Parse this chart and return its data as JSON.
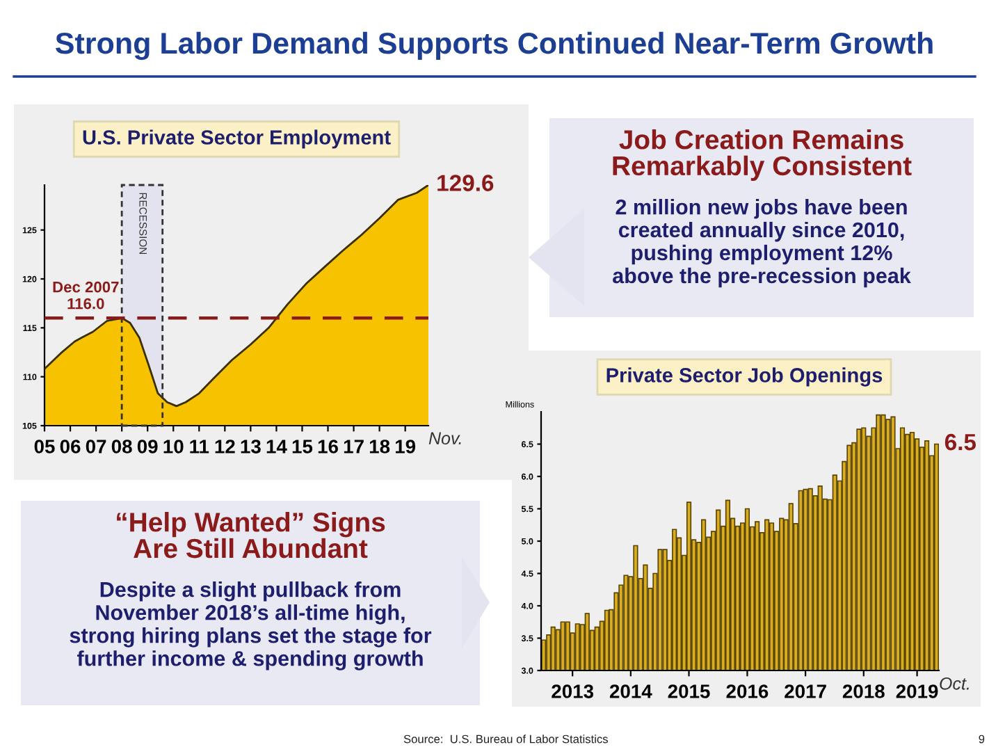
{
  "chart_data": [
    {
      "type": "other",
      "title": "Strong Labor Demand Supports Continued Near-Term Growth",
      "annotations": [
        "Source:  U.S. Bureau of Labor Statistics",
        "9"
      ]
    },
    {
      "type": "area",
      "title": "U.S. Private Sector Employment",
      "xlabel": "Nov.",
      "x": [
        2005.0,
        2005.63,
        2006.17,
        2006.44,
        2006.88,
        2007.42,
        2008.0,
        2008.32,
        2008.68,
        2009.04,
        2009.4,
        2009.76,
        2010.12,
        2010.48,
        2011.0,
        2011.55,
        2012.27,
        2013.0,
        2013.7,
        2014.43,
        2015.15,
        2015.86,
        2016.58,
        2017.3,
        2018.0,
        2018.73,
        2019.45,
        2019.9
      ],
      "series": [
        {
          "color": "#f7c200",
          "values": [
            110.8,
            112.4,
            113.6,
            114.0,
            114.6,
            115.7,
            116.0,
            115.5,
            114.0,
            111.2,
            108.3,
            107.4,
            107.0,
            107.4,
            108.3,
            109.8,
            111.7,
            113.3,
            115.0,
            117.4,
            119.5,
            121.2,
            122.9,
            124.5,
            126.2,
            128.1,
            128.8,
            129.6
          ]
        }
      ],
      "xlim": [
        2005.0,
        2019.9
      ],
      "ylim": [
        105,
        129.6
      ],
      "xticks": [
        {
          "value": 2005,
          "label": "05"
        },
        {
          "value": 2006,
          "label": "06"
        },
        {
          "value": 2007,
          "label": "07"
        },
        {
          "value": 2008,
          "label": "08"
        },
        {
          "value": 2009,
          "label": "09"
        },
        {
          "value": 2010,
          "label": "10"
        },
        {
          "value": 2011,
          "label": "11"
        },
        {
          "value": 2012,
          "label": "12"
        },
        {
          "value": 2013,
          "label": "13"
        },
        {
          "value": 2014,
          "label": "14"
        },
        {
          "value": 2015,
          "label": "15"
        },
        {
          "value": 2016,
          "label": "16"
        },
        {
          "value": 2017,
          "label": "17"
        },
        {
          "value": 2018,
          "label": "18"
        },
        {
          "value": 2019,
          "label": "19"
        }
      ],
      "yticks": [
        105,
        110,
        115,
        120,
        125
      ],
      "ref_lines": [
        {
          "axis": "y",
          "value": 116.0,
          "label": "Dec 2007\n116.0",
          "color": "#8b1a1a",
          "line_style": "dashed"
        }
      ],
      "bands": [
        {
          "axis": "x",
          "from": 2008.0,
          "to": 2009.58,
          "label": "RECESSION",
          "color": "#e3e3f0"
        }
      ],
      "annotations": [
        {
          "text": "129.6",
          "x": 2019.9,
          "y": 129.6
        }
      ],
      "grid": false,
      "legend": false
    },
    {
      "type": "other",
      "title": "Job Creation Remains\nRemarkably Consistent",
      "annotations": [
        "2 million new jobs have been\ncreated annually since 2010,\npushing employment 12%\nabove the pre-recession peak"
      ]
    },
    {
      "type": "other",
      "title": "“Help Wanted” Signs\nAre Still Abundant",
      "annotations": [
        "Despite a slight pullback from\nNovember 2018’s all-time high,\nstrong hiring plans set the stage for\nfurther income & spending growth"
      ]
    },
    {
      "type": "bar",
      "title": "Private Sector Job Openings",
      "ylabel": "Millions",
      "xlabel": "Oct.",
      "x": [
        "2013-01",
        "2013-02",
        "2013-03",
        "2013-04",
        "2013-05",
        "2013-06",
        "2013-07",
        "2013-08",
        "2013-09",
        "2013-10",
        "2013-11",
        "2013-12",
        "2014-01",
        "2014-02",
        "2014-03",
        "2014-04",
        "2014-05",
        "2014-06",
        "2014-07",
        "2014-08",
        "2014-09",
        "2014-10",
        "2014-11",
        "2014-12",
        "2015-01",
        "2015-02",
        "2015-03",
        "2015-04",
        "2015-05",
        "2015-06",
        "2015-07",
        "2015-08",
        "2015-09",
        "2015-10",
        "2015-11",
        "2015-12",
        "2016-01",
        "2016-02",
        "2016-03",
        "2016-04",
        "2016-05",
        "2016-06",
        "2016-07",
        "2016-08",
        "2016-09",
        "2016-10",
        "2016-11",
        "2016-12",
        "2017-01",
        "2017-02",
        "2017-03",
        "2017-04",
        "2017-05",
        "2017-06",
        "2017-07",
        "2017-08",
        "2017-09",
        "2017-10",
        "2017-11",
        "2017-12",
        "2018-01",
        "2018-02",
        "2018-03",
        "2018-04",
        "2018-05",
        "2018-06",
        "2018-07",
        "2018-08",
        "2018-09",
        "2018-10",
        "2018-11",
        "2018-12",
        "2019-01",
        "2019-02",
        "2019-03",
        "2019-04",
        "2019-05",
        "2019-06",
        "2019-07",
        "2019-08",
        "2019-09",
        "2019-10"
      ],
      "series": [
        {
          "color": "#d9ad22",
          "values": [
            3.47,
            3.55,
            3.67,
            3.63,
            3.75,
            3.75,
            3.58,
            3.72,
            3.71,
            3.88,
            3.62,
            3.67,
            3.76,
            3.93,
            3.94,
            4.2,
            4.32,
            4.47,
            4.45,
            4.93,
            4.42,
            4.63,
            4.27,
            4.5,
            4.87,
            4.87,
            4.7,
            5.18,
            5.05,
            4.78,
            5.6,
            5.02,
            4.98,
            5.33,
            5.06,
            5.15,
            5.48,
            5.23,
            5.63,
            5.35,
            5.23,
            5.28,
            5.5,
            5.22,
            5.3,
            5.13,
            5.33,
            5.28,
            5.15,
            5.35,
            5.33,
            5.58,
            5.27,
            5.78,
            5.8,
            5.81,
            5.7,
            5.85,
            5.65,
            5.64,
            6.02,
            5.93,
            6.23,
            6.48,
            6.52,
            6.73,
            6.75,
            6.62,
            6.75,
            6.95,
            6.95,
            6.88,
            6.92,
            6.43,
            6.75,
            6.65,
            6.68,
            6.58,
            6.45,
            6.55,
            6.32,
            6.5
          ]
        }
      ],
      "ylim": [
        3.0,
        7.0
      ],
      "yticks": [
        {
          "value": 3.0,
          "label": "3.0"
        },
        {
          "value": 3.5,
          "label": "3.5"
        },
        {
          "value": 4.0,
          "label": "4.0"
        },
        {
          "value": 4.5,
          "label": "4.5"
        },
        {
          "value": 5.0,
          "label": "5.0"
        },
        {
          "value": 5.5,
          "label": "5.5"
        },
        {
          "value": 6.0,
          "label": "6.0"
        },
        {
          "value": 6.5,
          "label": "6.5"
        }
      ],
      "xlim": [
        "2012-12-16",
        "2019-10-16"
      ],
      "xticks": [
        {
          "value": "2013-07-01",
          "label": "2013"
        },
        {
          "value": "2014-07-01",
          "label": "2014"
        },
        {
          "value": "2015-07-01",
          "label": "2015"
        },
        {
          "value": "2016-07-01",
          "label": "2016"
        },
        {
          "value": "2017-07-01",
          "label": "2017"
        },
        {
          "value": "2018-07-01",
          "label": "2018"
        },
        {
          "value": "2019-06-01",
          "label": "2019"
        }
      ],
      "annotations": [
        {
          "text": "6.5",
          "x": "2019-10",
          "y": 6.5
        }
      ],
      "grid": false,
      "legend": false
    }
  ]
}
